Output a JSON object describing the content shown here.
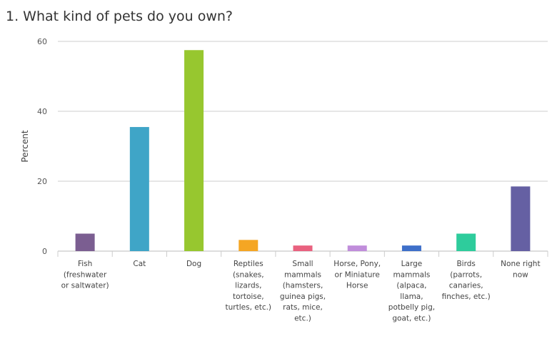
{
  "chart_data": {
    "type": "bar",
    "title": "1. What kind of pets do you own?",
    "ylabel": "Percent",
    "ylim": [
      0,
      60
    ],
    "yticks": [
      0,
      20,
      40,
      60
    ],
    "grid": true,
    "categories": [
      [
        "Fish",
        "(freshwater",
        "or saltwater)"
      ],
      [
        "Cat"
      ],
      [
        "Dog"
      ],
      [
        "Reptiles",
        "(snakes,",
        "lizards,",
        "tortoise,",
        "turtles, etc.)"
      ],
      [
        "Small",
        "mammals",
        "(hamsters,",
        "guinea pigs,",
        "rats, mice,",
        "etc.)"
      ],
      [
        "Horse, Pony,",
        "or Miniature",
        "Horse"
      ],
      [
        "Large",
        "mammals",
        "(alpaca,",
        "llama,",
        "potbelly pig,",
        "goat, etc.)"
      ],
      [
        "Birds",
        "(parrots,",
        "canaries,",
        "finches, etc.)"
      ],
      [
        "None right",
        "now"
      ]
    ],
    "values": [
      5,
      35.5,
      57.5,
      3.2,
      1.6,
      1.6,
      1.6,
      5,
      18.5
    ],
    "colors": [
      "#7b5e91",
      "#3fa5c7",
      "#97c72f",
      "#f5a623",
      "#e9617f",
      "#c08ddb",
      "#3e6fc9",
      "#2ecc9c",
      "#6560a3"
    ]
  }
}
